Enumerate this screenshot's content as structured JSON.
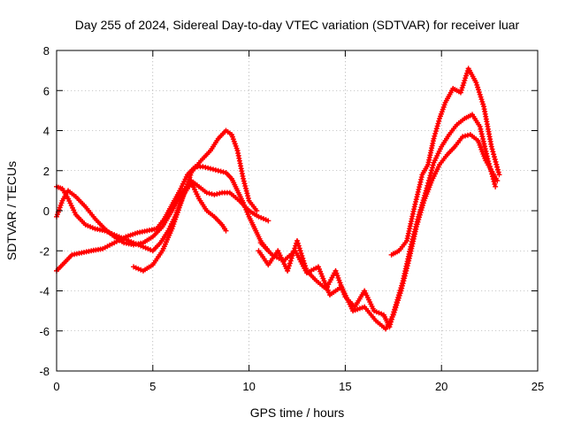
{
  "chart_data": {
    "type": "scatter",
    "title": "Day 255 of 2024, Sidereal Day-to-day VTEC variation (SDTVAR) for receiver luar",
    "xlabel": "GPS time / hours",
    "ylabel": "SDTVAR / TECUs",
    "xlim": [
      0,
      25
    ],
    "ylim": [
      -8,
      8
    ],
    "x_ticks": [
      0,
      5,
      10,
      15,
      20,
      25
    ],
    "y_ticks": [
      -8,
      -6,
      -4,
      -2,
      0,
      2,
      4,
      6,
      8
    ],
    "grid": true,
    "marker": "+",
    "color": "#ff0000",
    "series": [
      {
        "name": "track-1",
        "x": [
          0,
          0.4,
          0.8,
          1.3,
          1.8,
          2.4,
          3.0,
          3.6,
          4.2,
          4.7,
          5.2,
          5.6,
          6.0,
          6.4,
          6.8,
          7.2,
          7.6,
          8.0,
          8.4,
          8.8,
          9.1,
          9.4,
          9.7,
          10.0,
          10.3,
          10.6,
          11.0
        ],
        "y": [
          -3.0,
          -2.6,
          -2.2,
          -2.1,
          -2.0,
          -1.9,
          -1.6,
          -1.3,
          -1.1,
          -1.0,
          -0.9,
          -0.4,
          0.3,
          1.0,
          1.8,
          2.2,
          2.2,
          2.1,
          2.0,
          1.9,
          1.6,
          1.0,
          0.4,
          -0.3,
          -0.9,
          -1.5,
          -2.0
        ]
      },
      {
        "name": "track-2",
        "x": [
          0,
          0.3,
          0.6,
          1.0,
          1.5,
          2.0,
          2.5,
          3.0,
          3.5,
          4.0,
          4.5,
          5.0,
          5.5,
          6.0,
          6.5,
          7.0,
          7.4,
          7.8,
          8.2,
          8.6,
          9.0,
          9.5,
          10.0,
          10.5,
          11.0
        ],
        "y": [
          -0.3,
          0.5,
          1.0,
          0.7,
          0.2,
          -0.4,
          -0.9,
          -1.3,
          -1.6,
          -1.7,
          -1.6,
          -1.3,
          -0.8,
          0.0,
          0.9,
          1.5,
          1.2,
          0.9,
          0.8,
          0.9,
          0.9,
          0.5,
          0.0,
          -0.3,
          -0.5
        ]
      },
      {
        "name": "track-3",
        "x": [
          0,
          0.3,
          0.6,
          1.0,
          1.5,
          2.0,
          2.5,
          3.0,
          3.5,
          4.0,
          4.5,
          5.0,
          5.4,
          5.8,
          6.2,
          6.6,
          7.0,
          7.4,
          7.8,
          8.2,
          8.6,
          8.8
        ],
        "y": [
          1.2,
          1.1,
          0.6,
          -0.2,
          -0.7,
          -0.9,
          -1.0,
          -1.2,
          -1.4,
          -1.6,
          -1.8,
          -2.0,
          -1.6,
          -1.0,
          -0.2,
          0.8,
          1.4,
          0.6,
          0.0,
          -0.3,
          -0.7,
          -1.0
        ]
      },
      {
        "name": "track-4",
        "x": [
          4.0,
          4.5,
          5.0,
          5.5,
          6.0,
          6.5,
          7.0,
          7.5,
          8.0,
          8.4,
          8.8,
          9.1,
          9.4,
          9.7,
          10.0,
          10.4
        ],
        "y": [
          -2.8,
          -3.0,
          -2.7,
          -2.0,
          -0.9,
          0.5,
          1.9,
          2.5,
          3.0,
          3.6,
          4.0,
          3.8,
          3.0,
          1.6,
          0.5,
          0.0
        ]
      },
      {
        "name": "track-5",
        "x": [
          10.5,
          11.0,
          11.5,
          12.0,
          12.5,
          13.0,
          13.5,
          14.0,
          14.5,
          15.0,
          15.5,
          16.0,
          16.5,
          17.0,
          17.3,
          17.6,
          18.0,
          18.4,
          18.8,
          19.2,
          19.6,
          20.0,
          20.4,
          20.8,
          21.2,
          21.6,
          22.0,
          22.4,
          22.8
        ],
        "y": [
          -2.0,
          -2.7,
          -2.0,
          -3.0,
          -1.5,
          -3.0,
          -3.5,
          -3.9,
          -3.0,
          -4.3,
          -4.8,
          -4.0,
          -5.0,
          -5.2,
          -5.8,
          -4.8,
          -3.5,
          -1.8,
          -0.3,
          1.0,
          2.4,
          3.2,
          3.8,
          4.3,
          4.6,
          4.8,
          4.2,
          2.6,
          1.2
        ]
      },
      {
        "name": "track-6",
        "x": [
          10.6,
          11.2,
          11.8,
          12.4,
          13.0,
          13.6,
          14.2,
          14.8,
          15.4,
          16.0,
          16.6,
          17.1,
          17.5,
          17.9,
          18.3,
          18.7,
          19.1,
          19.5,
          19.9,
          20.3,
          20.7,
          21.1,
          21.5,
          21.9,
          22.3,
          22.9
        ],
        "y": [
          -1.6,
          -2.2,
          -2.5,
          -2.0,
          -3.1,
          -2.8,
          -4.2,
          -3.8,
          -5.0,
          -4.8,
          -5.5,
          -5.9,
          -5.2,
          -4.0,
          -2.5,
          -0.8,
          0.5,
          1.5,
          2.3,
          2.8,
          3.2,
          3.7,
          3.8,
          3.5,
          2.5,
          1.5
        ]
      },
      {
        "name": "track-7",
        "x": [
          17.4,
          17.8,
          18.2,
          18.6,
          19.0,
          19.3,
          19.6,
          19.9,
          20.2,
          20.6,
          21.0,
          21.4,
          21.8,
          22.2,
          22.6,
          23.0
        ],
        "y": [
          -2.2,
          -2.0,
          -1.5,
          0.2,
          1.8,
          2.3,
          3.6,
          4.6,
          5.4,
          6.1,
          5.9,
          7.1,
          6.4,
          5.2,
          3.2,
          1.8
        ]
      }
    ]
  }
}
